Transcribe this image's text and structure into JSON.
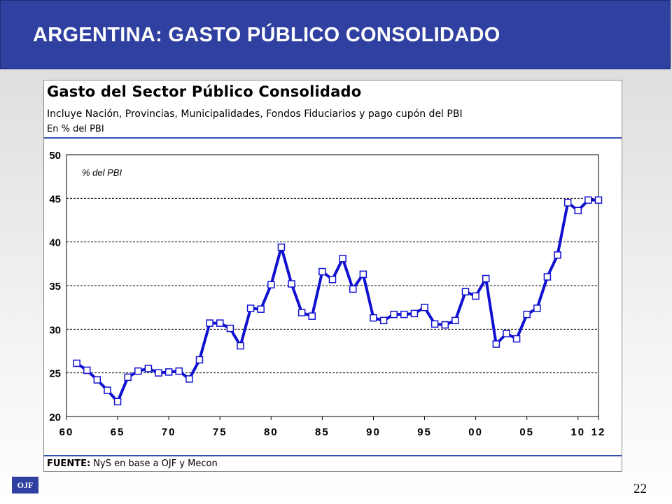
{
  "header": {
    "title": "ARGENTINA: GASTO PÚBLICO CONSOLIDADO"
  },
  "panel": {
    "title": "Gasto del Sector Público Consolidado",
    "subtitle": "Incluye Nación, Provincias, Municipalidades, Fondos Fiduciarios y pago cupón del PBI",
    "unit": "En % del PBI",
    "source_label": "FUENTE:",
    "source_text": " NyS en base a OJF y Mecon"
  },
  "footer": {
    "logo": "OJF",
    "page_number": "22"
  },
  "colors": {
    "header_bg": "#3040a0",
    "line": "#1010d0",
    "rule": "#3050b0",
    "marker_fill": "#ffffff"
  },
  "chart_data": {
    "type": "line",
    "annotation": "% del PBI",
    "ylim": [
      20,
      50
    ],
    "yticks": [
      "20",
      "25",
      "30",
      "35",
      "40",
      "45",
      "50"
    ],
    "xticks": [
      {
        "value": 1960,
        "label": "60"
      },
      {
        "value": 1965,
        "label": "65"
      },
      {
        "value": 1970,
        "label": "70"
      },
      {
        "value": 1975,
        "label": "75"
      },
      {
        "value": 1980,
        "label": "80"
      },
      {
        "value": 1985,
        "label": "85"
      },
      {
        "value": 1990,
        "label": "90"
      },
      {
        "value": 1995,
        "label": "95"
      },
      {
        "value": 2000,
        "label": "00"
      },
      {
        "value": 2005,
        "label": "05"
      },
      {
        "value": 2010,
        "label": "10"
      },
      {
        "value": 2012,
        "label": "12"
      }
    ],
    "xlim": [
      1960,
      2012
    ],
    "grid": "horizontal dashed",
    "x": [
      1961,
      1962,
      1963,
      1964,
      1965,
      1966,
      1967,
      1968,
      1969,
      1970,
      1971,
      1972,
      1973,
      1974,
      1975,
      1976,
      1977,
      1978,
      1979,
      1980,
      1981,
      1982,
      1983,
      1984,
      1985,
      1986,
      1987,
      1988,
      1989,
      1990,
      1991,
      1992,
      1993,
      1994,
      1995,
      1996,
      1997,
      1998,
      1999,
      2000,
      2001,
      2002,
      2003,
      2004,
      2005,
      2006,
      2007,
      2008,
      2009,
      2010,
      2011,
      2012
    ],
    "values": [
      26.1,
      25.3,
      24.2,
      23.0,
      21.7,
      24.5,
      25.2,
      25.5,
      25.0,
      25.1,
      25.2,
      24.3,
      26.5,
      30.7,
      30.7,
      30.1,
      28.1,
      32.4,
      32.3,
      35.1,
      39.4,
      35.2,
      31.9,
      31.5,
      36.6,
      35.7,
      38.1,
      34.6,
      36.3,
      31.3,
      31.0,
      31.7,
      31.7,
      31.8,
      32.5,
      30.6,
      30.5,
      31.0,
      34.3,
      33.8,
      35.8,
      28.3,
      29.5,
      28.9,
      31.7,
      32.4,
      36.0,
      38.5,
      44.5,
      43.6,
      44.8,
      44.8
    ]
  }
}
